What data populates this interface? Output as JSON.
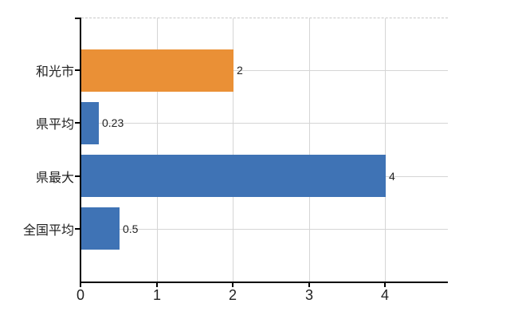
{
  "chart_data": {
    "type": "bar",
    "orientation": "horizontal",
    "title": "",
    "xlabel": "",
    "ylabel": "",
    "categories": [
      "和光市",
      "県平均",
      "県最大",
      "全国平均"
    ],
    "values": [
      2,
      0.23,
      4,
      0.5
    ],
    "value_labels": [
      "2",
      "0.23",
      "4",
      "0.5"
    ],
    "bar_colors": [
      "#EA9036",
      "#3F73B5",
      "#3F73B5",
      "#3F73B5"
    ],
    "x_ticks": [
      0,
      1,
      2,
      3,
      4
    ],
    "x_tick_labels": [
      "0",
      "1",
      "2",
      "3",
      "4"
    ],
    "xlim": [
      0,
      4.81
    ],
    "grid": true,
    "legend": false,
    "highlight_category": "和光市"
  },
  "colors": {
    "bar_orange": "#EA9036",
    "bar_blue": "#3F73B5",
    "grid": "#D5D5D5",
    "top_border": "#C8C8C8",
    "axis": "#000000",
    "text": "#222222",
    "background": "#FFFFFF"
  }
}
